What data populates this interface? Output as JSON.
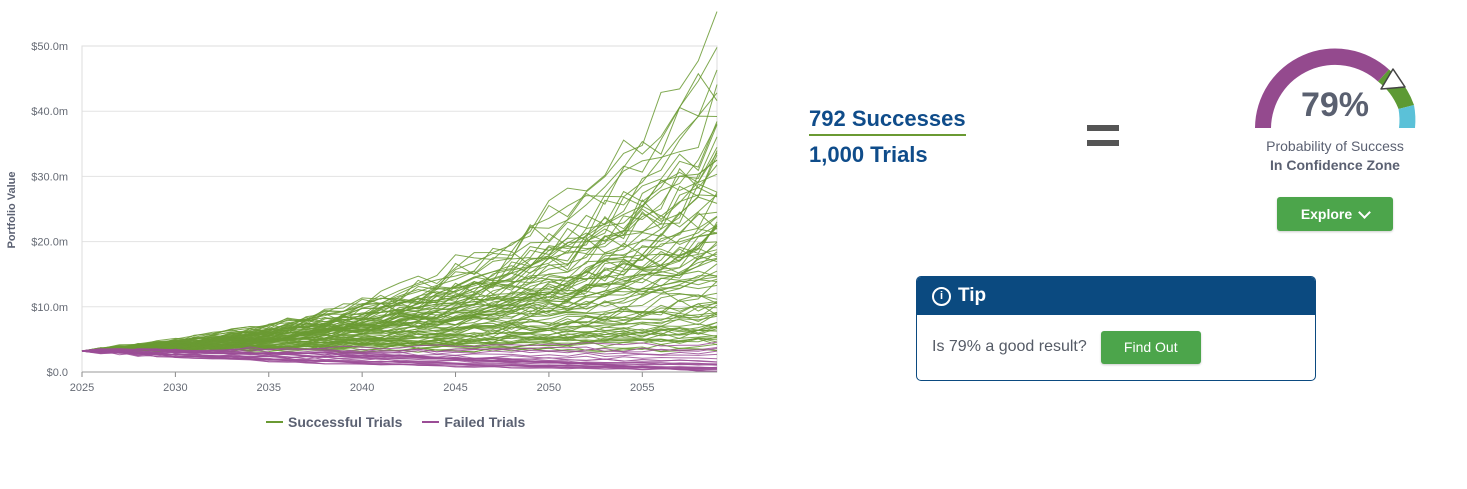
{
  "colors": {
    "success": "#6a9a33",
    "fail": "#9b4d96",
    "gauge_purple": "#944a8e",
    "gauge_green": "#5d9a34",
    "gauge_blue": "#5bc1d8",
    "accent_blue": "#0f4c8a",
    "button_green": "#4ca54b"
  },
  "chart_data": {
    "type": "line",
    "ylabel": "Portfolio Value",
    "xlim": [
      2025,
      2059
    ],
    "ylim": [
      0,
      50
    ],
    "x_ticks": [
      "2025",
      "2030",
      "2035",
      "2040",
      "2045",
      "2050",
      "2055"
    ],
    "y_ticks": [
      "$0.0",
      "$10.0m",
      "$20.0m",
      "$30.0m",
      "$40.0m",
      "$50.0m"
    ],
    "grid": "horizontal",
    "legend_position": "bottom",
    "start_value": 3.2,
    "series": [
      {
        "name": "Successful Trials",
        "count": 90,
        "final_values_sample": [
          45.5,
          40.0,
          29.5,
          28.0,
          26.0,
          24.0,
          22.0,
          20.0,
          18.0,
          16.0,
          14.0,
          12.5,
          11.0,
          10.0,
          9.0,
          8.0,
          7.0,
          6.0,
          5.0,
          4.0
        ]
      },
      {
        "name": "Failed Trials",
        "count": 25,
        "final_values_sample": [
          3.0,
          2.0,
          1.0,
          0.5,
          0.0
        ]
      }
    ]
  },
  "legend": {
    "success_label": "Successful Trials",
    "fail_label": "Failed Trials"
  },
  "ratio": {
    "successes": "792 Successes",
    "trials": "1,000 Trials"
  },
  "gauge": {
    "percent_text": "79%",
    "probability_value": 0.79,
    "label": "Probability of Success",
    "zone": "In Confidence Zone"
  },
  "explore_button": {
    "label": "Explore",
    "icon": "chevron-down-icon"
  },
  "tip": {
    "title": "Tip",
    "icon": "info-icon",
    "question": "Is 79% a good result?",
    "button_label": "Find Out"
  }
}
